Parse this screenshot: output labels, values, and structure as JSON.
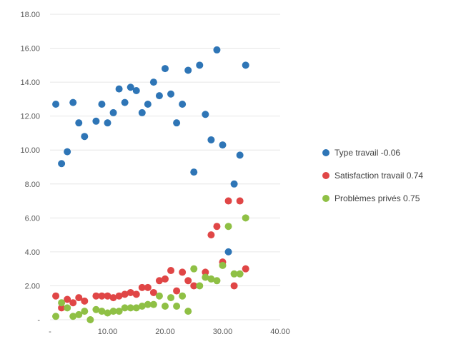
{
  "chart_data": {
    "type": "scatter",
    "title": "",
    "xlabel": "",
    "ylabel": "",
    "xlim": [
      0,
      40
    ],
    "ylim": [
      0,
      18
    ],
    "x_ticks": [
      "-",
      "10.00",
      "20.00",
      "30.00",
      "40.00"
    ],
    "y_ticks": [
      "-",
      "2.00",
      "4.00",
      "6.00",
      "8.00",
      "10.00",
      "12.00",
      "14.00",
      "16.00",
      "18.00"
    ],
    "grid": "horizontal",
    "legend_position": "right",
    "series": [
      {
        "name": "Type travail -0.06",
        "color": "#2e75b6",
        "points": [
          [
            1,
            12.7
          ],
          [
            2,
            9.2
          ],
          [
            3,
            9.9
          ],
          [
            4,
            12.8
          ],
          [
            5,
            11.6
          ],
          [
            6,
            10.8
          ],
          [
            8,
            11.7
          ],
          [
            9,
            12.7
          ],
          [
            10,
            11.6
          ],
          [
            11,
            12.2
          ],
          [
            12,
            13.6
          ],
          [
            13,
            12.8
          ],
          [
            14,
            13.7
          ],
          [
            15,
            13.5
          ],
          [
            16,
            12.2
          ],
          [
            17,
            12.7
          ],
          [
            18,
            14.0
          ],
          [
            19,
            13.2
          ],
          [
            20,
            14.8
          ],
          [
            21,
            13.3
          ],
          [
            22,
            11.6
          ],
          [
            23,
            12.7
          ],
          [
            24,
            14.7
          ],
          [
            25,
            8.7
          ],
          [
            26,
            15.0
          ],
          [
            27,
            12.1
          ],
          [
            28,
            10.6
          ],
          [
            29,
            15.9
          ],
          [
            30,
            10.3
          ],
          [
            31,
            4.0
          ],
          [
            32,
            8.0
          ],
          [
            33,
            9.7
          ],
          [
            34,
            15.0
          ]
        ]
      },
      {
        "name": "Satisfaction travail  0.74",
        "color": "#e04646",
        "points": [
          [
            1,
            1.4
          ],
          [
            2,
            0.7
          ],
          [
            3,
            1.2
          ],
          [
            4,
            1.0
          ],
          [
            5,
            1.3
          ],
          [
            6,
            1.1
          ],
          [
            8,
            1.4
          ],
          [
            9,
            1.4
          ],
          [
            10,
            1.4
          ],
          [
            11,
            1.3
          ],
          [
            12,
            1.4
          ],
          [
            13,
            1.5
          ],
          [
            14,
            1.6
          ],
          [
            15,
            1.5
          ],
          [
            16,
            1.9
          ],
          [
            17,
            1.9
          ],
          [
            18,
            1.6
          ],
          [
            19,
            2.3
          ],
          [
            20,
            2.4
          ],
          [
            21,
            2.9
          ],
          [
            22,
            1.7
          ],
          [
            23,
            2.8
          ],
          [
            24,
            2.3
          ],
          [
            25,
            2.0
          ],
          [
            27,
            2.8
          ],
          [
            28,
            5.0
          ],
          [
            29,
            5.5
          ],
          [
            30,
            3.4
          ],
          [
            31,
            7.0
          ],
          [
            32,
            2.0
          ],
          [
            33,
            7.0
          ],
          [
            34,
            3.0
          ]
        ]
      },
      {
        "name": "Problèmes privés 0.75",
        "color": "#8fc045",
        "points": [
          [
            1,
            0.2
          ],
          [
            2,
            1.0
          ],
          [
            3,
            0.7
          ],
          [
            4,
            0.2
          ],
          [
            5,
            0.3
          ],
          [
            6,
            0.5
          ],
          [
            7,
            0.0
          ],
          [
            8,
            0.6
          ],
          [
            9,
            0.5
          ],
          [
            10,
            0.4
          ],
          [
            11,
            0.5
          ],
          [
            12,
            0.5
          ],
          [
            13,
            0.7
          ],
          [
            14,
            0.7
          ],
          [
            15,
            0.7
          ],
          [
            16,
            0.8
          ],
          [
            17,
            0.9
          ],
          [
            18,
            0.9
          ],
          [
            19,
            1.4
          ],
          [
            20,
            0.8
          ],
          [
            21,
            1.3
          ],
          [
            22,
            0.8
          ],
          [
            23,
            1.4
          ],
          [
            24,
            0.5
          ],
          [
            25,
            3.0
          ],
          [
            26,
            2.0
          ],
          [
            27,
            2.5
          ],
          [
            28,
            2.4
          ],
          [
            29,
            2.3
          ],
          [
            30,
            3.2
          ],
          [
            31,
            5.5
          ],
          [
            32,
            2.7
          ],
          [
            33,
            2.7
          ],
          [
            34,
            6.0
          ]
        ]
      }
    ]
  }
}
